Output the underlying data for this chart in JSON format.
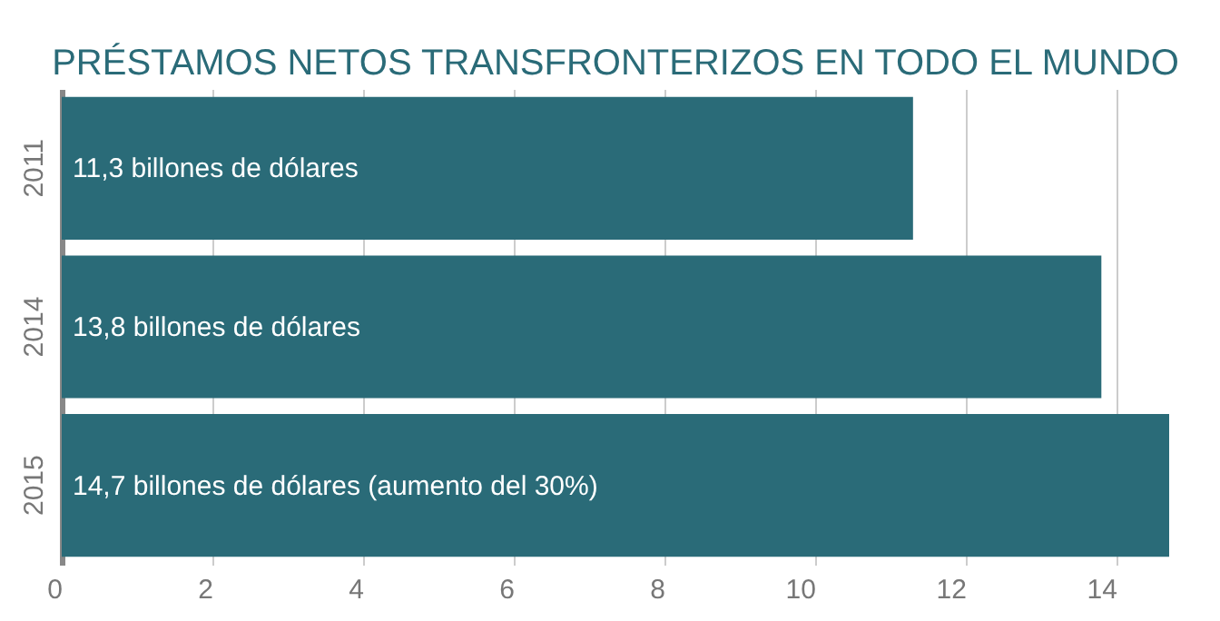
{
  "chart_data": {
    "type": "bar",
    "orientation": "horizontal",
    "title": "PRÉSTAMOS NETOS TRANSFRONTERIZOS EN TODO EL MUNDO",
    "categories": [
      "2011",
      "2014",
      "2015"
    ],
    "values": [
      11.3,
      13.8,
      14.7
    ],
    "value_labels": [
      "11,3 billones de dólares",
      "13,8 billones de dólares",
      "14,7 billones de dólares (aumento del 30%)"
    ],
    "color": "#2a6b78",
    "xlim": [
      0,
      14.7
    ],
    "xticks": [
      0,
      2,
      4,
      6,
      8,
      10,
      12,
      14
    ],
    "grid": "x"
  }
}
